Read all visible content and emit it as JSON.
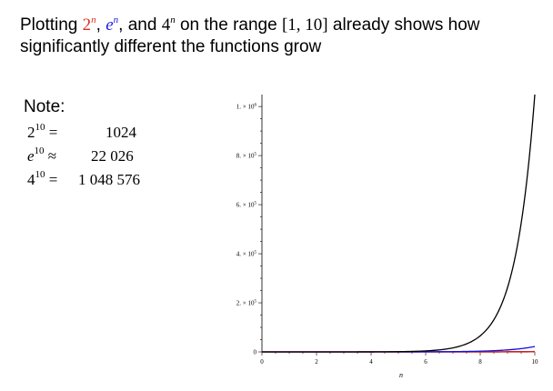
{
  "headline": {
    "line1_prefix": "Plotting ",
    "term1": {
      "base": "2",
      "exp": "n"
    },
    "sep1": ", ",
    "term2": {
      "base": "e",
      "exp": "n"
    },
    "sep2": ", and ",
    "term3": {
      "base": "4",
      "exp": "n"
    },
    "line1_middle": " on the range ",
    "range": "[1, 10]",
    "line1_suffix": " already shows how",
    "line2": "significantly different the functions grow"
  },
  "note": {
    "title": "Note:",
    "rows": [
      {
        "base": "2",
        "exp": "10",
        "rel": " =",
        "value": "1024"
      },
      {
        "base": "e",
        "exp": "10",
        "rel": " ≈",
        "value": "22 026"
      },
      {
        "base": "4",
        "exp": "10",
        "rel": " =",
        "value": "1 048 576"
      }
    ]
  },
  "colors": {
    "pow2": "#cc2222",
    "powe": "#1111dd",
    "pow4": "#000000",
    "headline_pow2": "#d93025",
    "headline_powe": "#1a1ae0"
  },
  "chart_data": {
    "type": "line",
    "xlabel": "n",
    "xlim": [
      0,
      10
    ],
    "ylim": [
      0,
      1048576
    ],
    "x_ticks": [
      0,
      2,
      4,
      6,
      8,
      10
    ],
    "y_ticks": [
      {
        "value": 0,
        "mant": "0",
        "exp": ""
      },
      {
        "value": 200000,
        "mant": "2. × 10",
        "exp": "5"
      },
      {
        "value": 400000,
        "mant": "4. × 10",
        "exp": "5"
      },
      {
        "value": 600000,
        "mant": "6. × 10",
        "exp": "5"
      },
      {
        "value": 800000,
        "mant": "8. × 10",
        "exp": "5"
      },
      {
        "value": 1000000,
        "mant": "1. × 10",
        "exp": "6"
      }
    ],
    "series": [
      {
        "key": "pow2",
        "base": 2,
        "x": [
          1,
          2,
          3,
          4,
          5,
          6,
          7,
          8,
          9,
          10
        ],
        "values": [
          2,
          4,
          8,
          16,
          32,
          64,
          128,
          256,
          512,
          1024
        ]
      },
      {
        "key": "powe",
        "base": 2.718281828,
        "x": [
          1,
          2,
          3,
          4,
          5,
          6,
          7,
          8,
          9,
          10
        ],
        "values": [
          2.718,
          7.389,
          20.09,
          54.6,
          148.4,
          403.4,
          1096.6,
          2981,
          8103,
          22026
        ]
      },
      {
        "key": "pow4",
        "base": 4,
        "x": [
          1,
          2,
          3,
          4,
          5,
          6,
          7,
          8,
          9,
          10
        ],
        "values": [
          4,
          16,
          64,
          256,
          1024,
          4096,
          16384,
          65536,
          262144,
          1048576
        ]
      }
    ]
  }
}
